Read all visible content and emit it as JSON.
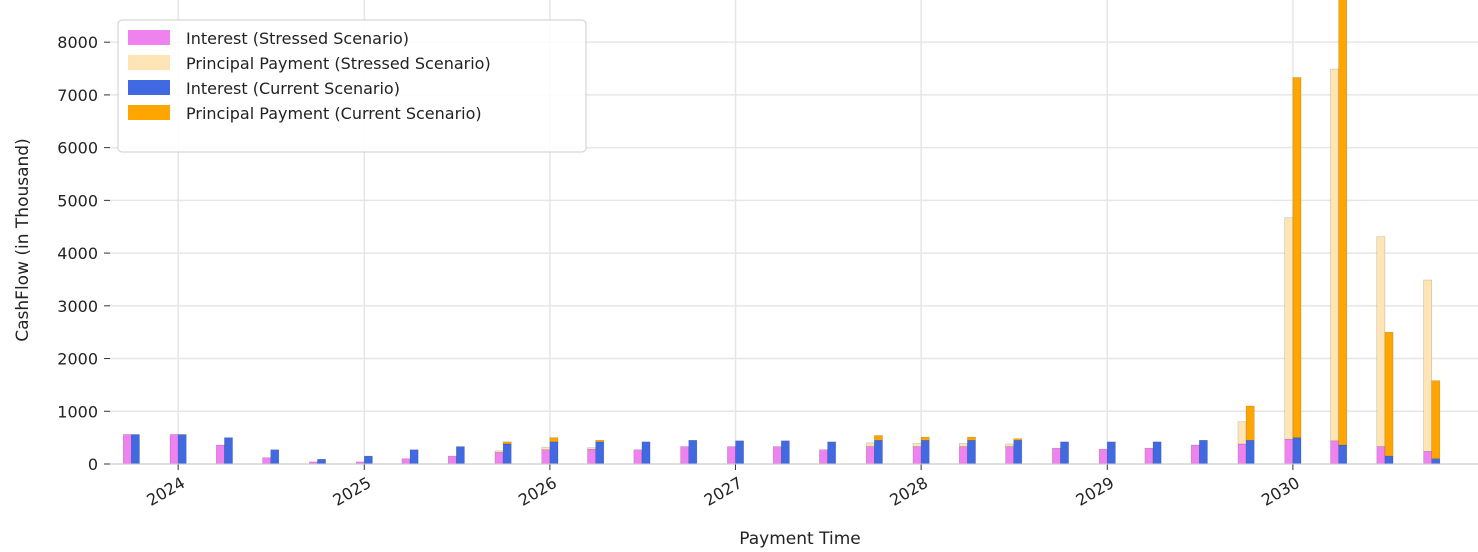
{
  "chart_data": {
    "type": "bar",
    "title": "",
    "xlabel": "Payment Time",
    "ylabel": "CashFlow (in Thousand)",
    "ylim": [
      0,
      8800
    ],
    "yticks": [
      0,
      1000,
      2000,
      3000,
      4000,
      5000,
      6000,
      7000,
      8000
    ],
    "x_ticks": [
      {
        "label": "2024",
        "date": "2024-01-01"
      },
      {
        "label": "2025",
        "date": "2025-01-01"
      },
      {
        "label": "2026",
        "date": "2026-01-01"
      },
      {
        "label": "2027",
        "date": "2027-01-01"
      },
      {
        "label": "2028",
        "date": "2028-01-01"
      },
      {
        "label": "2029",
        "date": "2029-01-01"
      },
      {
        "label": "2030",
        "date": "2030-01-01"
      }
    ],
    "xlim": [
      "2023-08-20",
      "2030-12-31"
    ],
    "grid": true,
    "legend_position": "top-left",
    "dates": [
      "2023-10-01",
      "2024-01-01",
      "2024-04-01",
      "2024-07-01",
      "2024-10-01",
      "2025-01-01",
      "2025-04-01",
      "2025-07-01",
      "2025-10-01",
      "2026-01-01",
      "2026-04-01",
      "2026-07-01",
      "2026-10-01",
      "2027-01-01",
      "2027-04-01",
      "2027-07-01",
      "2027-10-01",
      "2028-01-01",
      "2028-04-01",
      "2028-07-01",
      "2028-10-01",
      "2029-01-01",
      "2029-04-01",
      "2029-07-01",
      "2029-10-01",
      "2030-01-01",
      "2030-04-01",
      "2030-07-01",
      "2030-10-01"
    ],
    "series": [
      {
        "name": "Interest (Stressed Scenario)",
        "group": "stressed",
        "color": "#ee82ee",
        "values": [
          560,
          560,
          360,
          120,
          40,
          40,
          100,
          150,
          220,
          270,
          280,
          270,
          330,
          330,
          330,
          270,
          330,
          330,
          330,
          330,
          300,
          280,
          300,
          360,
          380,
          470,
          440,
          330,
          240
        ]
      },
      {
        "name": "Principal Payment (Stressed Scenario)",
        "group": "stressed",
        "color": "#ffe4b5",
        "values": [
          0,
          0,
          0,
          0,
          0,
          0,
          0,
          0,
          30,
          50,
          30,
          0,
          0,
          0,
          0,
          0,
          70,
          60,
          60,
          50,
          0,
          0,
          0,
          0,
          420,
          4200,
          7050,
          3980,
          3250
        ]
      },
      {
        "name": "Interest (Current Scenario)",
        "group": "current",
        "color": "#4169e1",
        "values": [
          560,
          560,
          500,
          270,
          90,
          150,
          270,
          330,
          380,
          420,
          420,
          420,
          450,
          440,
          440,
          420,
          450,
          450,
          450,
          450,
          420,
          420,
          420,
          450,
          450,
          500,
          360,
          150,
          100
        ]
      },
      {
        "name": "Principal Payment (Current Scenario)",
        "group": "current",
        "color": "#ffa500",
        "values": [
          0,
          0,
          0,
          0,
          0,
          0,
          0,
          0,
          40,
          80,
          30,
          0,
          0,
          0,
          0,
          0,
          90,
          60,
          60,
          30,
          0,
          0,
          0,
          0,
          650,
          6830,
          8500,
          2350,
          1480
        ]
      }
    ]
  }
}
